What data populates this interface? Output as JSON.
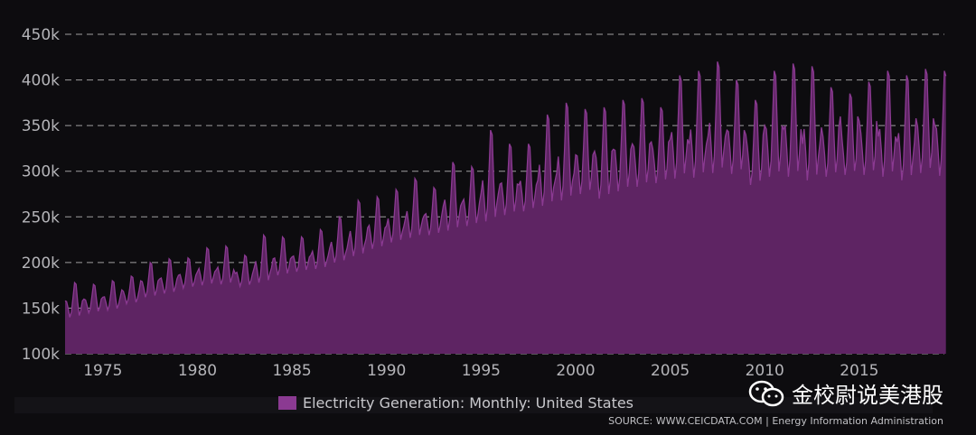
{
  "colors": {
    "area_fill": "#5e2463",
    "area_stroke": "#8b3a92",
    "background": "#0d0c0f",
    "legend_swatch": "#8b3a92"
  },
  "legend": {
    "label": "Electricity Generation: Monthly: United States"
  },
  "source": "SOURCE: WWW.CEICDATA.COM | Energy Information Administration",
  "watermark": {
    "text": "金校尉说美港股",
    "icon": "wechat-icon"
  },
  "chart_data": {
    "type": "area",
    "title": "",
    "xlabel": "",
    "ylabel": "",
    "grid": true,
    "legend_position": "bottom",
    "ylim": [
      100000,
      450000
    ],
    "xlim": [
      1973,
      2019.5
    ],
    "y_ticks": [
      "100k",
      "150k",
      "200k",
      "250k",
      "300k",
      "350k",
      "400k",
      "450k"
    ],
    "x_ticks": [
      "1975",
      "1980",
      "1985",
      "1990",
      "1995",
      "2000",
      "2005",
      "2010",
      "2015"
    ],
    "series": [
      {
        "name": "Electricity Generation: Monthly: United States",
        "annual_low": [
          [
            1973,
            140000
          ],
          [
            1974,
            145000
          ],
          [
            1975,
            148000
          ],
          [
            1976,
            155000
          ],
          [
            1977,
            162000
          ],
          [
            1978,
            166000
          ],
          [
            1979,
            172000
          ],
          [
            1980,
            175000
          ],
          [
            1981,
            176000
          ],
          [
            1982,
            174000
          ],
          [
            1983,
            178000
          ],
          [
            1984,
            186000
          ],
          [
            1985,
            190000
          ],
          [
            1986,
            193000
          ],
          [
            1987,
            200000
          ],
          [
            1988,
            207000
          ],
          [
            1989,
            215000
          ],
          [
            1990,
            222000
          ],
          [
            1991,
            227000
          ],
          [
            1992,
            230000
          ],
          [
            1993,
            235000
          ],
          [
            1994,
            240000
          ],
          [
            1995,
            245000
          ],
          [
            1996,
            252000
          ],
          [
            1997,
            256000
          ],
          [
            1998,
            262000
          ],
          [
            1999,
            268000
          ],
          [
            2000,
            275000
          ],
          [
            2001,
            270000
          ],
          [
            2002,
            278000
          ],
          [
            2003,
            283000
          ],
          [
            2004,
            287000
          ],
          [
            2005,
            292000
          ],
          [
            2006,
            293000
          ],
          [
            2007,
            298000
          ],
          [
            2008,
            297000
          ],
          [
            2009,
            285000
          ],
          [
            2010,
            294000
          ],
          [
            2011,
            294000
          ],
          [
            2012,
            290000
          ],
          [
            2013,
            294000
          ],
          [
            2014,
            296000
          ],
          [
            2015,
            296000
          ],
          [
            2016,
            294000
          ],
          [
            2017,
            290000
          ],
          [
            2018,
            298000
          ],
          [
            2019,
            295000
          ]
        ],
        "annual_summer_peak": [
          [
            1973,
            178000
          ],
          [
            1974,
            176000
          ],
          [
            1975,
            180000
          ],
          [
            1976,
            185000
          ],
          [
            1977,
            200000
          ],
          [
            1978,
            204000
          ],
          [
            1979,
            205000
          ],
          [
            1980,
            216000
          ],
          [
            1981,
            218000
          ],
          [
            1982,
            208000
          ],
          [
            1983,
            230000
          ],
          [
            1984,
            228000
          ],
          [
            1985,
            228000
          ],
          [
            1986,
            236000
          ],
          [
            1987,
            250000
          ],
          [
            1988,
            268000
          ],
          [
            1989,
            272000
          ],
          [
            1990,
            280000
          ],
          [
            1991,
            292000
          ],
          [
            1992,
            282000
          ],
          [
            1993,
            310000
          ],
          [
            1994,
            305000
          ],
          [
            1995,
            345000
          ],
          [
            1996,
            330000
          ],
          [
            1997,
            330000
          ],
          [
            1998,
            362000
          ],
          [
            1999,
            375000
          ],
          [
            2000,
            368000
          ],
          [
            2001,
            370000
          ],
          [
            2002,
            378000
          ],
          [
            2003,
            380000
          ],
          [
            2004,
            370000
          ],
          [
            2005,
            405000
          ],
          [
            2006,
            410000
          ],
          [
            2007,
            420000
          ],
          [
            2008,
            400000
          ],
          [
            2009,
            378000
          ],
          [
            2010,
            410000
          ],
          [
            2011,
            418000
          ],
          [
            2012,
            415000
          ],
          [
            2013,
            392000
          ],
          [
            2014,
            385000
          ],
          [
            2015,
            398000
          ],
          [
            2016,
            410000
          ],
          [
            2017,
            405000
          ],
          [
            2018,
            412000
          ],
          [
            2019,
            410000
          ]
        ],
        "annual_winter_peak": [
          [
            1973,
            158000
          ],
          [
            1974,
            160000
          ],
          [
            1975,
            162000
          ],
          [
            1976,
            170000
          ],
          [
            1977,
            180000
          ],
          [
            1978,
            182000
          ],
          [
            1979,
            186000
          ],
          [
            1980,
            190000
          ],
          [
            1981,
            192000
          ],
          [
            1982,
            188000
          ],
          [
            1983,
            194000
          ],
          [
            1984,
            204000
          ],
          [
            1985,
            206000
          ],
          [
            1986,
            208000
          ],
          [
            1987,
            216000
          ],
          [
            1988,
            226000
          ],
          [
            1989,
            238000
          ],
          [
            1990,
            240000
          ],
          [
            1991,
            248000
          ],
          [
            1992,
            252000
          ],
          [
            1993,
            262000
          ],
          [
            1994,
            266000
          ],
          [
            1995,
            276000
          ],
          [
            1996,
            286000
          ],
          [
            1997,
            285000
          ],
          [
            1998,
            290000
          ],
          [
            1999,
            298000
          ],
          [
            2000,
            318000
          ],
          [
            2001,
            322000
          ],
          [
            2002,
            324000
          ],
          [
            2003,
            330000
          ],
          [
            2004,
            332000
          ],
          [
            2005,
            335000
          ],
          [
            2006,
            330000
          ],
          [
            2007,
            338000
          ],
          [
            2008,
            345000
          ],
          [
            2009,
            340000
          ],
          [
            2010,
            350000
          ],
          [
            2011,
            346000
          ],
          [
            2012,
            330000
          ],
          [
            2013,
            348000
          ],
          [
            2014,
            360000
          ],
          [
            2015,
            355000
          ],
          [
            2016,
            338000
          ],
          [
            2017,
            332000
          ],
          [
            2018,
            358000
          ],
          [
            2019,
            350000
          ]
        ]
      }
    ]
  }
}
